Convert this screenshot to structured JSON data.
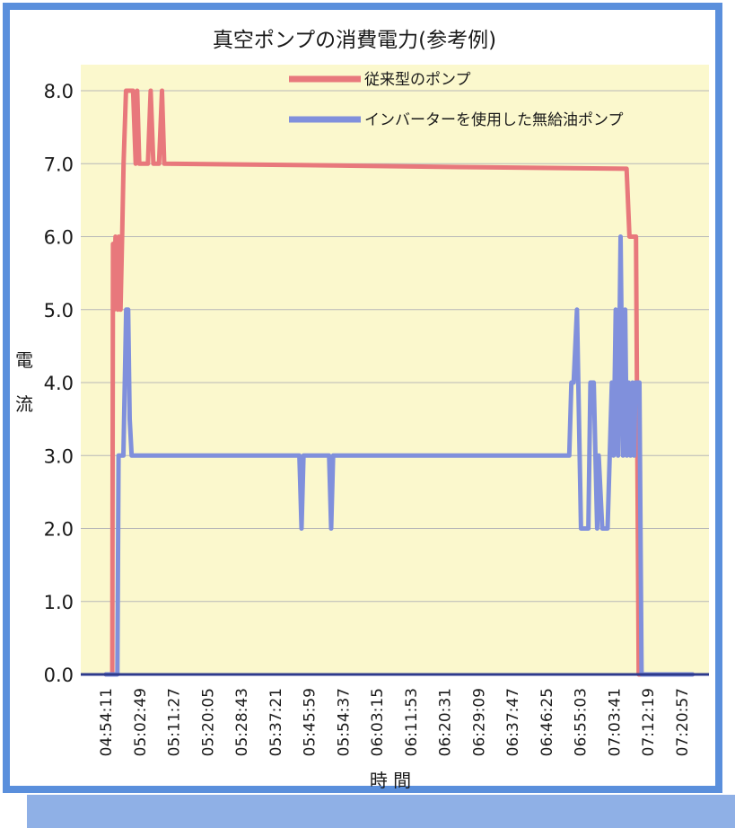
{
  "colors": {
    "frame": "#5a8fdc",
    "plot_background": "#fbf8cd",
    "grid": "#b8b8b8",
    "conventional_pump": "#e8787c",
    "inverter_pump": "#8090dc",
    "baseline": "#2d3a8c"
  },
  "chart_data": {
    "type": "line",
    "title": "真空ポンプの消費電力(参考例)",
    "ylabel": "電流",
    "xlabel": "時 間",
    "ylim": [
      0,
      8.0
    ],
    "yticks": [
      "0.0",
      "1.0",
      "2.0",
      "3.0",
      "4.0",
      "5.0",
      "6.0",
      "7.0",
      "8.0"
    ],
    "x_tick_labels": [
      "04:54:11",
      "05:02:49",
      "05:11:27",
      "05:20:05",
      "05:28:43",
      "05:37:21",
      "05:45:59",
      "05:54:37",
      "06:03:15",
      "06:11:53",
      "06:20:31",
      "06:29:09",
      "06:37:47",
      "06:46:25",
      "06:55:03",
      "07:03:41",
      "07:12:19",
      "07:20:57"
    ],
    "legend_position": "top-center",
    "grid": true,
    "series": [
      {
        "name": "従来型のポンプ",
        "color": "#e8787c",
        "points": [
          [
            "04:54:11",
            0
          ],
          [
            "04:55:48",
            0
          ],
          [
            "04:56:00",
            5.9
          ],
          [
            "04:56:16",
            5.0
          ],
          [
            "04:56:38",
            6.0
          ],
          [
            "04:57:13",
            5.0
          ],
          [
            "04:57:30",
            6.0
          ],
          [
            "04:57:54",
            5.0
          ],
          [
            "04:58:20",
            6.0
          ],
          [
            "04:58:42",
            7.0
          ],
          [
            "04:59:18",
            8.0
          ],
          [
            "05:01:07",
            8.0
          ],
          [
            "05:01:47",
            7.0
          ],
          [
            "05:02:10",
            8.0
          ],
          [
            "05:02:42",
            7.0
          ],
          [
            "05:04:53",
            7.0
          ],
          [
            "05:05:36",
            8.0
          ],
          [
            "05:06:17",
            7.0
          ],
          [
            "05:07:44",
            7.0
          ],
          [
            "05:08:28",
            8.0
          ],
          [
            "05:09:03",
            7.0
          ],
          [
            "05:45:00",
            6.98
          ],
          [
            "06:30:00",
            6.95
          ],
          [
            "07:06:52",
            6.93
          ],
          [
            "07:07:36",
            6.0
          ],
          [
            "07:09:16",
            6.0
          ],
          [
            "07:09:58",
            0
          ],
          [
            "07:23:40",
            0
          ]
        ]
      },
      {
        "name": "インバーターを使用した無給油ポンプ",
        "color": "#8090dc",
        "points": [
          [
            "04:54:11",
            0
          ],
          [
            "04:57:06",
            0
          ],
          [
            "04:57:24",
            3.0
          ],
          [
            "04:58:39",
            3.0
          ],
          [
            "04:59:21",
            5.0
          ],
          [
            "04:59:51",
            5.0
          ],
          [
            "05:00:15",
            3.5
          ],
          [
            "05:00:45",
            3.0
          ],
          [
            "05:43:30",
            3.0
          ],
          [
            "05:44:02",
            2.0
          ],
          [
            "05:44:32",
            3.0
          ],
          [
            "05:51:03",
            3.0
          ],
          [
            "05:51:35",
            2.0
          ],
          [
            "05:52:05",
            3.0
          ],
          [
            "06:52:16",
            3.0
          ],
          [
            "06:52:48",
            4.0
          ],
          [
            "06:53:23",
            4.0
          ],
          [
            "06:54:13",
            5.0
          ],
          [
            "06:55:16",
            2.0
          ],
          [
            "06:57:08",
            2.0
          ],
          [
            "06:57:40",
            4.0
          ],
          [
            "06:58:30",
            4.0
          ],
          [
            "06:59:22",
            2.0
          ],
          [
            "06:59:45",
            3.0
          ],
          [
            "07:00:40",
            2.0
          ],
          [
            "07:02:02",
            2.0
          ],
          [
            "07:02:34",
            3.0
          ],
          [
            "07:03:08",
            4.0
          ],
          [
            "07:03:33",
            3.0
          ],
          [
            "07:04:07",
            5.0
          ],
          [
            "07:04:42",
            3.0
          ],
          [
            "07:05:21",
            6.0
          ],
          [
            "07:05:57",
            3.0
          ],
          [
            "07:06:31",
            5.0
          ],
          [
            "07:06:56",
            3.0
          ],
          [
            "07:07:25",
            4.0
          ],
          [
            "07:07:53",
            3.0
          ],
          [
            "07:08:24",
            4.0
          ],
          [
            "07:08:48",
            3.0
          ],
          [
            "07:09:08",
            4.0
          ],
          [
            "07:10:08",
            4.0
          ],
          [
            "07:10:41",
            0
          ],
          [
            "07:23:40",
            0
          ]
        ]
      }
    ]
  }
}
